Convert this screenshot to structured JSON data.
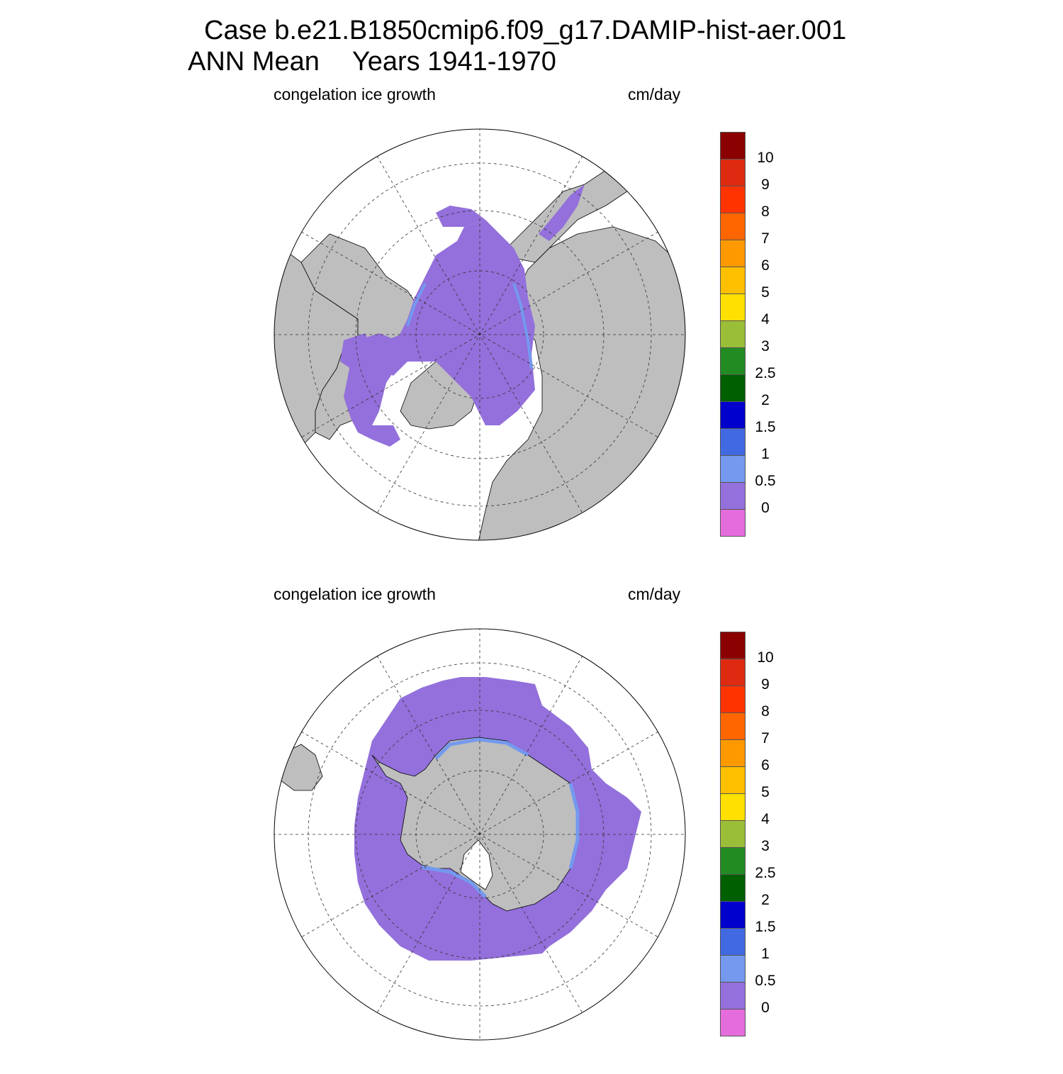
{
  "title": {
    "line1": "Case b.e21.B1850cmip6.f09_g17.DAMIP-hist-aer.001",
    "line2_left": "ANN Mean",
    "line2_right": "Years 1941-1970"
  },
  "panels": [
    {
      "hemisphere": "north",
      "field_label": "congelation ice growth",
      "units_label": "cm/day"
    },
    {
      "hemisphere": "south",
      "field_label": "congelation ice growth",
      "units_label": "cm/day"
    }
  ],
  "colorbar": {
    "colors": [
      "#8b0000",
      "#dd2a10",
      "#ff3300",
      "#ff6600",
      "#ff9900",
      "#ffc000",
      "#ffe000",
      "#9abe38",
      "#228b22",
      "#005f00",
      "#0000cc",
      "#4169e1",
      "#7499ee",
      "#9370db",
      "#e56cdd"
    ],
    "tick_labels": [
      "10",
      "9",
      "8",
      "7",
      "6",
      "5",
      "4",
      "3",
      "2.5",
      "2",
      "1.5",
      "1",
      "0.5",
      "0"
    ]
  },
  "map_colors": {
    "land": "#bebebe",
    "ocean": "#ffffff",
    "sea_ice_dominant": "#9370db",
    "sea_ice_edge": "#7499ee"
  }
}
